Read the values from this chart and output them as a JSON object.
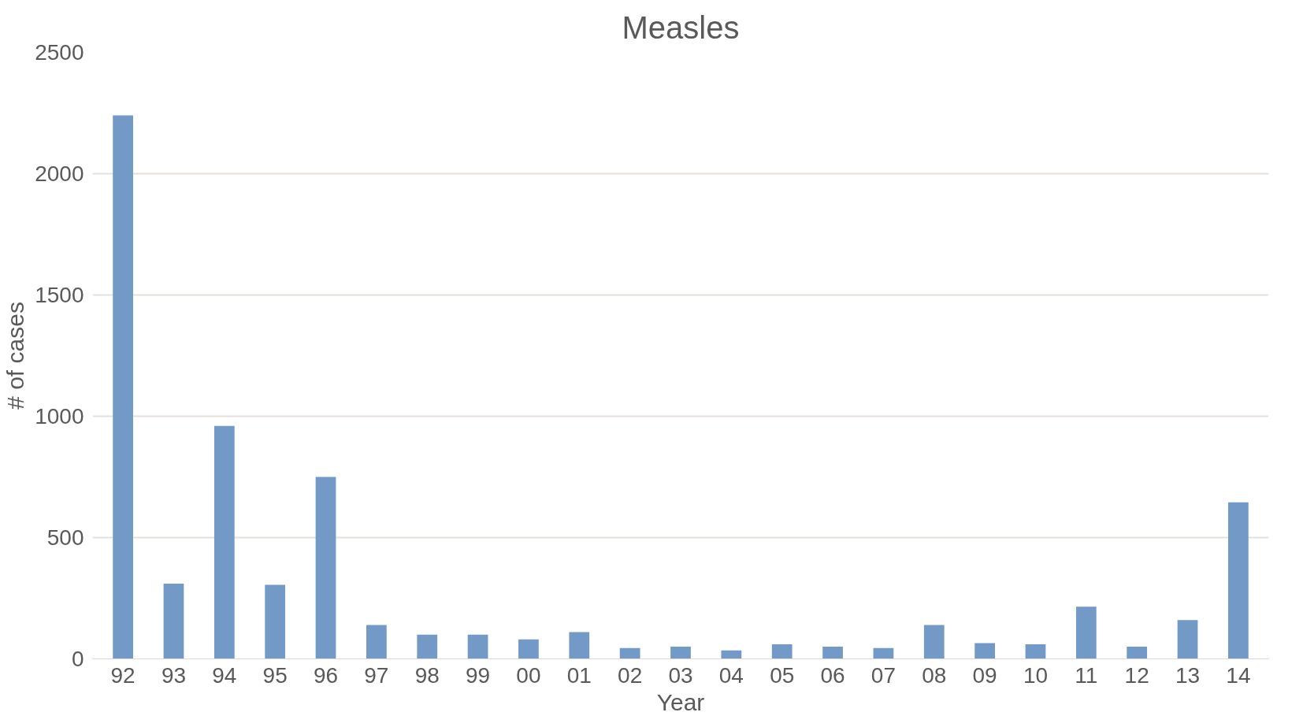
{
  "chart_data": {
    "type": "bar",
    "title": "Measles",
    "xlabel": "Year",
    "ylabel": "# of cases",
    "categories": [
      "92",
      "93",
      "94",
      "95",
      "96",
      "97",
      "98",
      "99",
      "00",
      "01",
      "02",
      "03",
      "04",
      "05",
      "06",
      "07",
      "08",
      "09",
      "10",
      "11",
      "12",
      "13",
      "14"
    ],
    "values": [
      2240,
      310,
      960,
      305,
      750,
      140,
      100,
      100,
      80,
      110,
      45,
      50,
      35,
      60,
      50,
      45,
      140,
      65,
      60,
      215,
      50,
      160,
      645
    ],
    "color": "#7399c6",
    "ylim": [
      0,
      2500
    ],
    "yticks": [
      0,
      500,
      1000,
      1500,
      2000,
      2500
    ],
    "grid": "y"
  }
}
